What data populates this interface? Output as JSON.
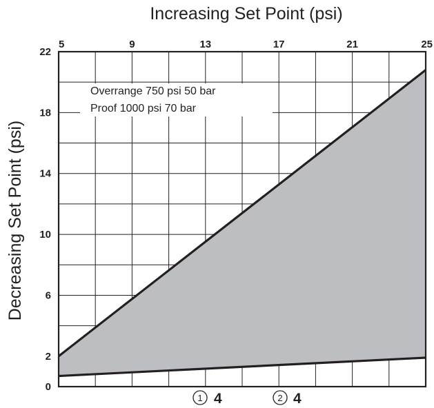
{
  "chart_data": {
    "type": "area",
    "title": "Increasing Set Point (psi)",
    "xlabel": "Increasing Set Point (psi)",
    "ylabel": "Decreasing Set Point (psi)",
    "xlim": [
      5,
      25
    ],
    "ylim": [
      0,
      22
    ],
    "x_ticks": [
      "5",
      "9",
      "13",
      "17",
      "21",
      "25"
    ],
    "y_ticks": [
      "0",
      "2",
      "6",
      "10",
      "14",
      "18",
      "22"
    ],
    "x_tick_values": [
      5,
      9,
      13,
      17,
      21,
      25
    ],
    "y_tick_values": [
      0,
      2,
      6,
      10,
      14,
      18,
      22
    ],
    "grid": true,
    "series": [
      {
        "name": "",
        "x": [
          5,
          25
        ],
        "y": [
          2.0,
          20.8
        ]
      },
      {
        "name": "",
        "x": [
          5,
          25
        ],
        "y": [
          0.7,
          1.9
        ]
      }
    ],
    "fill_color": "#bdbec2",
    "line_color": "#231f20",
    "annotations": [
      "Overrange 750 psi 50 bar",
      "Proof 1000 psi 70 bar"
    ],
    "footer_marks": [
      {
        "circle": "1",
        "value": "4"
      },
      {
        "circle": "2",
        "value": "4"
      }
    ]
  }
}
